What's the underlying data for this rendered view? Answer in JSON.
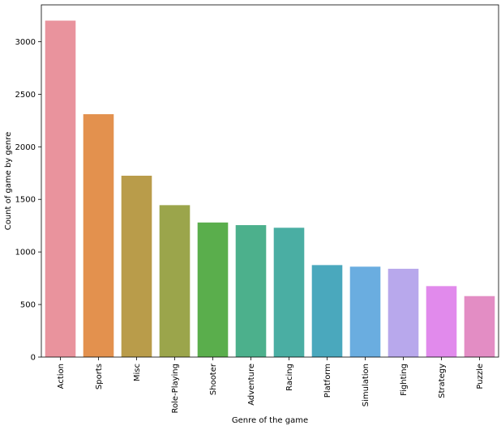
{
  "chart_data": {
    "type": "bar",
    "title": "",
    "xlabel": "Genre of the game",
    "ylabel": "Count of game by genre",
    "categories": [
      "Action",
      "Sports",
      "Misc",
      "Role-Playing",
      "Shooter",
      "Adventure",
      "Racing",
      "Platform",
      "Simulation",
      "Fighting",
      "Strategy",
      "Puzzle"
    ],
    "values": [
      3200,
      2310,
      1725,
      1445,
      1280,
      1255,
      1230,
      875,
      860,
      840,
      675,
      580
    ],
    "colors": [
      "#e9939d",
      "#e3914e",
      "#b99c4a",
      "#9ba54b",
      "#5aae4c",
      "#4cb08c",
      "#4aaea3",
      "#4aa8bd",
      "#6aade0",
      "#b8a8ec",
      "#e18aec",
      "#e38dc4"
    ],
    "ylim": [
      0,
      3350
    ],
    "yticks": [
      0,
      500,
      1000,
      1500,
      2000,
      2500,
      3000
    ],
    "grid": false,
    "legend": "none"
  }
}
